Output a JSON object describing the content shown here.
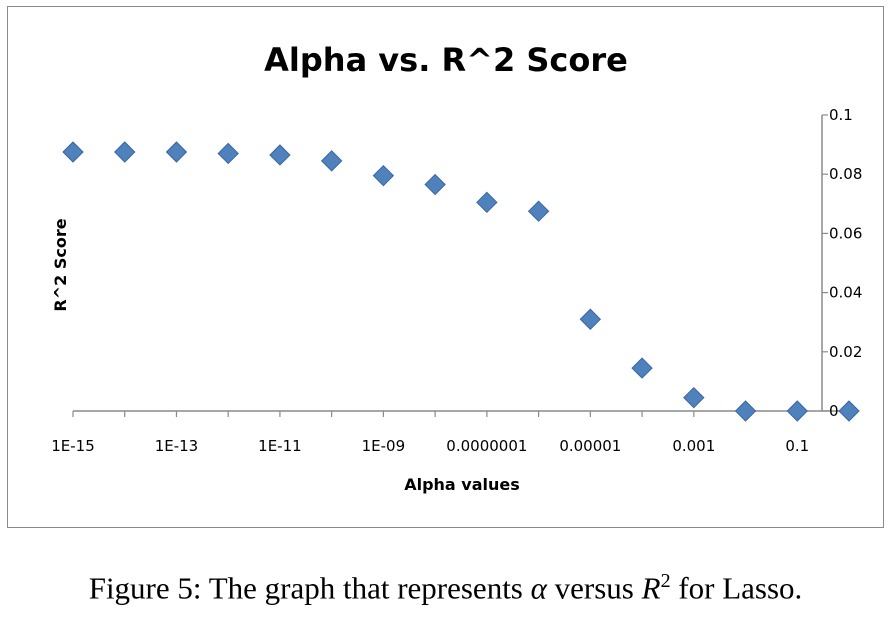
{
  "chart_data": {
    "type": "scatter",
    "title": "Alpha vs. R^2 Score",
    "xlabel": "Alpha values",
    "ylabel": "R^2 Score",
    "x_scale": "log",
    "x_tick_labels": [
      "1E-15",
      "1E-13",
      "1E-11",
      "1E-09",
      "0.0000001",
      "0.00001",
      "0.001",
      "0.1"
    ],
    "y_tick_labels": [
      "0",
      "0.02",
      "0.04",
      "0.06",
      "0.08",
      "0.1"
    ],
    "ylim": [
      0,
      0.1
    ],
    "y_axis_side": "right",
    "grid": false,
    "legend": "none",
    "marker": "diamond",
    "marker_color": "#4f81bd",
    "series": [
      {
        "x": [
          1e-15,
          1e-14,
          1e-13,
          1e-12,
          1e-11,
          1e-10,
          1e-09,
          1e-08,
          1e-07,
          1e-06,
          1e-05,
          0.0001,
          0.001,
          0.01,
          0.1,
          1
        ],
        "y": [
          0.0875,
          0.0875,
          0.0875,
          0.087,
          0.0865,
          0.0845,
          0.0795,
          0.0765,
          0.0705,
          0.0675,
          0.031,
          0.0145,
          0.0045,
          0.0,
          0.0,
          0.0
        ]
      }
    ]
  },
  "caption": {
    "prefix": "Figure 5: The graph that represents ",
    "alpha": "α",
    "middle": " versus ",
    "r": "R",
    "sup": "2",
    "suffix": " for Lasso."
  }
}
